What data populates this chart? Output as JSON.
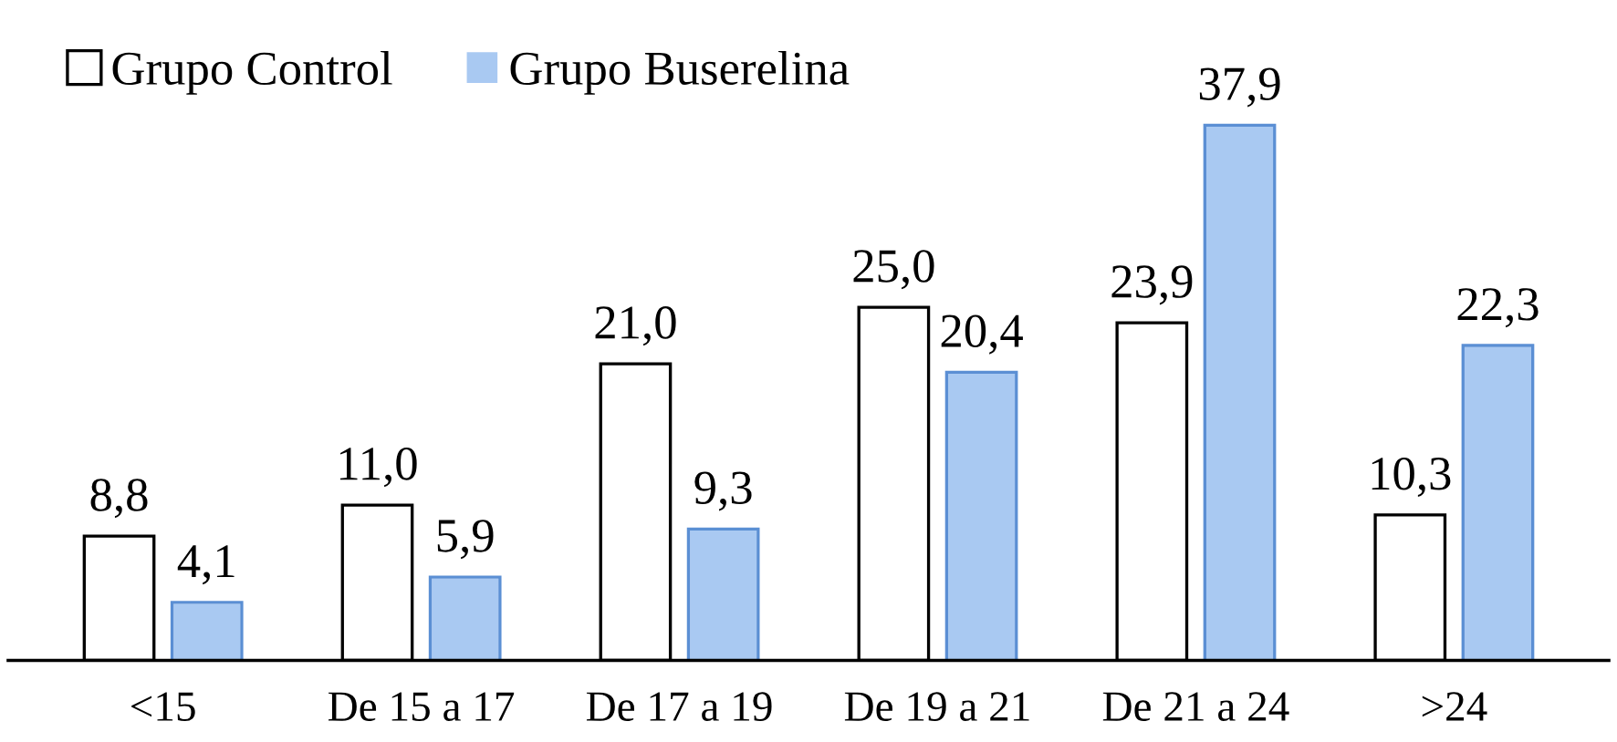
{
  "chart_data": {
    "type": "bar",
    "categories": [
      "<15",
      "De 15 a 17",
      "De 17 a 19",
      "De 19 a 21",
      "De 21 a 24",
      ">24"
    ],
    "series": [
      {
        "name": "Grupo Control",
        "color": "#ffffff",
        "values": [
          8.8,
          11.0,
          21.0,
          25.0,
          23.9,
          10.3
        ],
        "value_labels": [
          "8,8",
          "11,0",
          "21,0",
          "25,0",
          "23,9",
          "10,3"
        ]
      },
      {
        "name": "Grupo Buserelina",
        "color": "#a9c9f2",
        "values": [
          4.1,
          5.9,
          9.3,
          20.4,
          37.9,
          22.3
        ],
        "value_labels": [
          "4,1",
          "5,9",
          "9,3",
          "20,4",
          "37,9",
          "22,3"
        ]
      }
    ],
    "legend": "top left",
    "grid": false
  }
}
